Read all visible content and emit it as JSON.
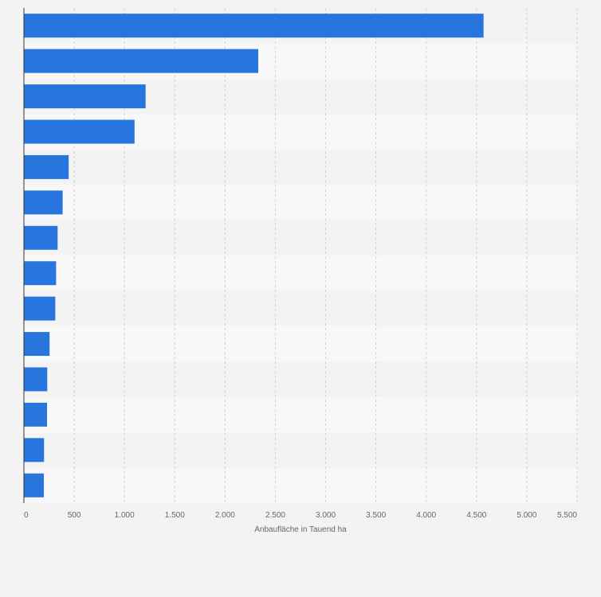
{
  "chart_data": {
    "type": "bar",
    "orientation": "horizontal",
    "categories": [
      "",
      "",
      "",
      "",
      "",
      "",
      "",
      "",
      "",
      "",
      "",
      "",
      "",
      ""
    ],
    "values": [
      4570,
      2330,
      1210,
      1100,
      445,
      385,
      335,
      320,
      312,
      255,
      232,
      230,
      200,
      198
    ],
    "xlabel": "Anbaufläche in Tauend ha",
    "xlim": [
      0,
      5500
    ],
    "x_ticks": [
      0,
      500,
      1000,
      1500,
      2000,
      2500,
      3000,
      3500,
      4000,
      4500,
      5000,
      5500
    ],
    "x_tick_labels": [
      "0",
      "500",
      "1.000",
      "1.500",
      "2.000",
      "2.500",
      "3.000",
      "3.500",
      "4.000",
      "4.500",
      "5.000",
      "5.500"
    ],
    "grid": "vertical dashed",
    "bar_color": "#2876dd",
    "band_colors": [
      "#f3f3f3",
      "#f8f8f8"
    ],
    "axis_color": "#333333",
    "gridline_color": "#d0d0d0"
  }
}
